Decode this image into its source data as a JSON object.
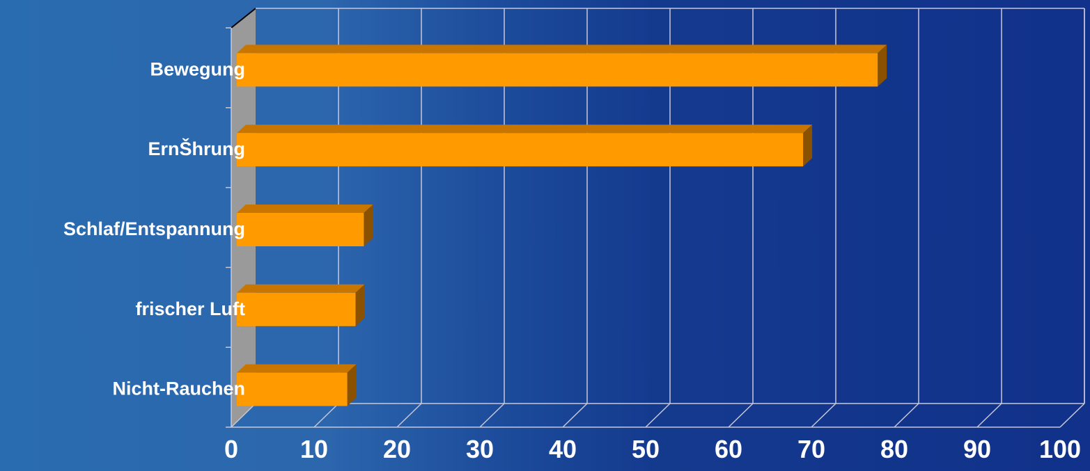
{
  "chart_data": {
    "type": "bar",
    "orientation": "horizontal",
    "three_d": true,
    "categories": [
      "Bewegung",
      "ErnŠhrung",
      "Schlaf/Entspannung",
      "frischer Luft",
      "Nicht-Rauchen"
    ],
    "values": [
      78,
      69,
      16,
      15,
      14
    ],
    "xlim": [
      0,
      100
    ],
    "xticks": [
      0,
      10,
      20,
      30,
      40,
      50,
      60,
      70,
      80,
      90,
      100
    ],
    "title": "",
    "xlabel": "",
    "ylabel": "",
    "grid": true,
    "legend": "none",
    "colors": {
      "bar_front": "#ff9a00",
      "bar_top": "#c97600",
      "bar_side": "#8a5200",
      "wall": "#9a9a9a",
      "grid": "#c8c8d8",
      "text": "#ffffff"
    }
  }
}
